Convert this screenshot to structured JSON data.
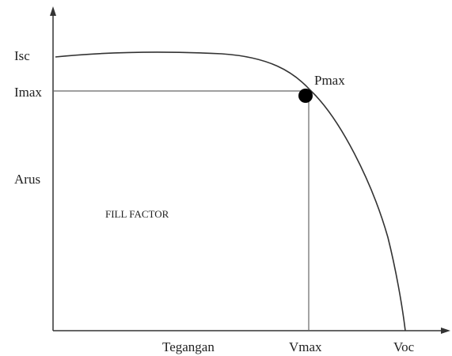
{
  "axes": {
    "y_label": "Arus",
    "x_label": "Tegangan"
  },
  "y_markers": [
    "Isc",
    "Imax"
  ],
  "x_markers": [
    "Vmax",
    "Voc"
  ],
  "point_label": "Pmax",
  "area_label": "FILL FACTOR"
}
